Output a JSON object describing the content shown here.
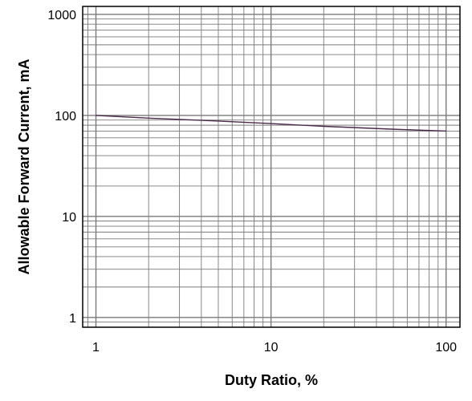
{
  "chart_data": {
    "type": "line",
    "title": "",
    "xlabel": "Duty Ratio, %",
    "ylabel": "Allowable Forward Current, mA",
    "xscale": "log",
    "yscale": "log",
    "xlim": [
      0.84,
      120
    ],
    "ylim": [
      0.8,
      1200
    ],
    "x_ticks": [
      {
        "value": 1,
        "label": "1"
      },
      {
        "value": 10,
        "label": "10"
      },
      {
        "value": 100,
        "label": "100"
      }
    ],
    "y_ticks": [
      {
        "value": 1,
        "label": "1"
      },
      {
        "value": 10,
        "label": "10"
      },
      {
        "value": 100,
        "label": "100"
      },
      {
        "value": 1000,
        "label": "1000"
      }
    ],
    "grid": true,
    "colors": {
      "series": "#4a2a4a",
      "grid": "#7a7a7a",
      "frame": "#000000"
    },
    "series": [
      {
        "x": [
          1,
          2,
          5,
          10,
          20,
          50,
          100
        ],
        "values": [
          100,
          94,
          88,
          83,
          78,
          73,
          70
        ]
      }
    ]
  }
}
